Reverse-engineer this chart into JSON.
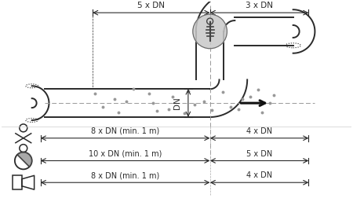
{
  "bg_color": "#ffffff",
  "line_color": "#2a2a2a",
  "sensor_circle_color": "#c8c8c8",
  "dim_top_5xDN": "5 x DN",
  "dim_top_3xDN": "3 x DN",
  "dim_vert_DN": "DN",
  "dim_row1_left": "8 x DN (min. 1 m)",
  "dim_row1_right": "4 x DN",
  "dim_row2_left": "10 x DN (min. 1 m)",
  "dim_row2_right": "5 x DN",
  "dim_row3_left": "8 x DN (min. 1 m)",
  "dim_row3_right": "4 x DN",
  "arrow_color": "#111111",
  "dash_color": "#999999",
  "font_size": 7.5
}
